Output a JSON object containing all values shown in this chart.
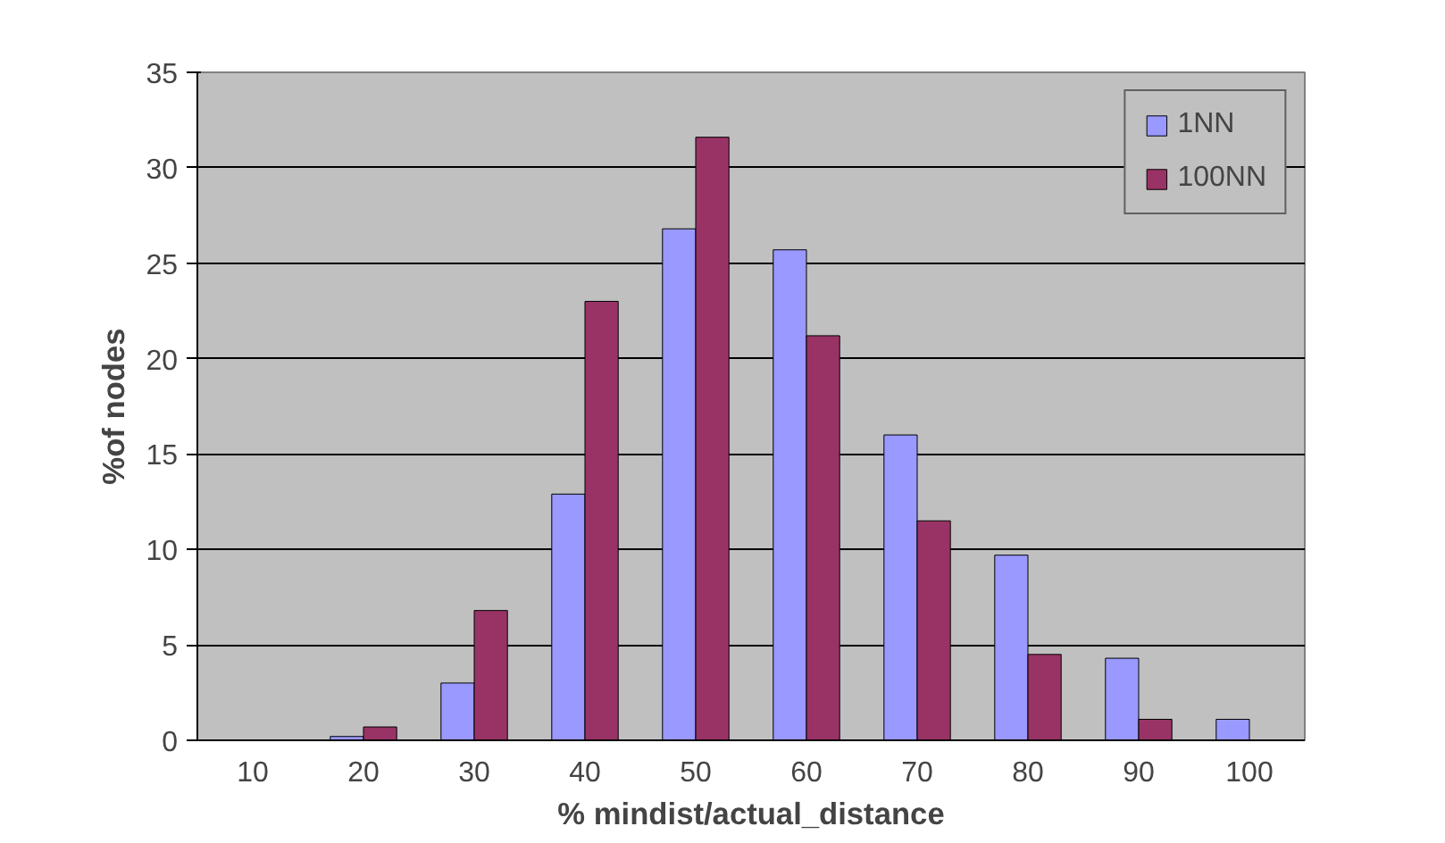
{
  "chart_data": {
    "type": "bar",
    "xlabel": "% mindist/actual_distance",
    "ylabel": "%of nodes",
    "categories": [
      "10",
      "20",
      "30",
      "40",
      "50",
      "60",
      "70",
      "80",
      "90",
      "100"
    ],
    "series": [
      {
        "name": "1NN",
        "color": "#9999ff",
        "values": [
          null,
          0.2,
          3,
          12.9,
          26.8,
          25.7,
          16,
          9.7,
          4.3,
          1.1
        ]
      },
      {
        "name": "100NN",
        "color": "#993366",
        "values": [
          null,
          0.7,
          6.8,
          23,
          31.6,
          21.2,
          11.5,
          4.5,
          1.1,
          null
        ]
      }
    ],
    "ylim": [
      0,
      35
    ],
    "yticks": [
      0,
      5,
      10,
      15,
      20,
      25,
      30,
      35
    ],
    "grid": "y",
    "legend": "top right"
  }
}
